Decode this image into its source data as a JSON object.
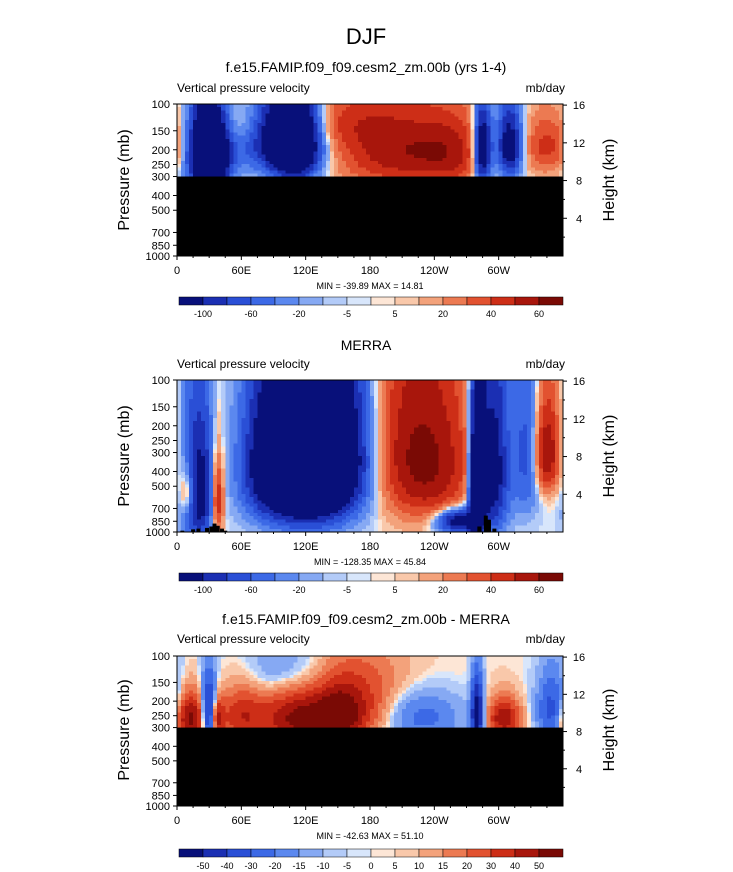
{
  "figure": {
    "title": "DJF"
  },
  "colors": {
    "blues": [
      "#08107a",
      "#1b2fb3",
      "#2a4fd6",
      "#3c69e6",
      "#5b88ef",
      "#86a9f3",
      "#b3cbf8",
      "#d8e6fb"
    ],
    "reds": [
      "#fde6d6",
      "#f9c8aa",
      "#f3a27b",
      "#ec7a52",
      "#e25230",
      "#cd2e17",
      "#a8160c",
      "#7a0a05"
    ],
    "neutral": "#dbe7fb",
    "mask": "#000000"
  },
  "chart_data": [
    {
      "type": "heatmap",
      "id": "model",
      "title": "f.e15.FAMIP.f09_f09.cesm2_zm.00b (yrs 1-4)",
      "left_label": "Vertical pressure velocity",
      "right_label": "mb/day",
      "ylabel": "Pressure (mb)",
      "y2label": "Height (km)",
      "xticks": [
        "0",
        "60E",
        "120E",
        "180",
        "120W",
        "60W"
      ],
      "xtick_lons": [
        0,
        60,
        120,
        180,
        240,
        300
      ],
      "yticks": [
        "100",
        "150",
        "200",
        "250",
        "300",
        "400",
        "500",
        "700",
        "850",
        "1000"
      ],
      "ytick_values": [
        100,
        150,
        200,
        250,
        300,
        400,
        500,
        700,
        850,
        1000
      ],
      "y2ticks": [
        "16",
        "12",
        "8",
        "4"
      ],
      "y2tick_values": [
        16,
        12,
        8,
        4
      ],
      "xlim": [
        0,
        360
      ],
      "ylim": [
        1000,
        100
      ],
      "mask_below_mb": 300,
      "minmax": "MIN = -39.89  MAX =  14.81",
      "min": -39.89,
      "max": 14.81,
      "colorbar_labels": [
        "-100",
        "-60",
        "-20",
        "-5",
        "5",
        "20",
        "40",
        "60"
      ],
      "colorbar_bins": 16,
      "field_scale": 0.45,
      "features": [
        {
          "lon": 30,
          "p": 210,
          "amp": -40,
          "wl": 12,
          "wp": 90
        },
        {
          "lon": 110,
          "p": 180,
          "amp": -30,
          "wl": 15,
          "wp": 80
        },
        {
          "lon": 90,
          "p": 160,
          "amp": -15,
          "wl": 25,
          "wp": 70
        },
        {
          "lon": 200,
          "p": 200,
          "amp": 12,
          "wl": 35,
          "wp": 90
        },
        {
          "lon": 255,
          "p": 210,
          "amp": 10,
          "wl": 25,
          "wp": 80
        },
        {
          "lon": 285,
          "p": 200,
          "amp": -25,
          "wl": 6,
          "wp": 80
        },
        {
          "lon": 310,
          "p": 190,
          "amp": -20,
          "wl": 8,
          "wp": 70
        },
        {
          "lon": 345,
          "p": 190,
          "amp": 8,
          "wl": 15,
          "wp": 60
        },
        {
          "lon": 60,
          "p": 130,
          "amp": 6,
          "wl": 20,
          "wp": 40
        },
        {
          "lon": 150,
          "p": 130,
          "amp": 5,
          "wl": 30,
          "wp": 40
        }
      ]
    },
    {
      "type": "heatmap",
      "id": "obs",
      "title": "MERRA",
      "left_label": "Vertical pressure velocity",
      "right_label": "mb/day",
      "ylabel": "Pressure (mb)",
      "y2label": "Height (km)",
      "xticks": [
        "0",
        "60E",
        "120E",
        "180",
        "120W",
        "60W"
      ],
      "xtick_lons": [
        0,
        60,
        120,
        180,
        240,
        300
      ],
      "yticks": [
        "100",
        "150",
        "200",
        "250",
        "300",
        "400",
        "500",
        "700",
        "850",
        "1000"
      ],
      "ytick_values": [
        100,
        150,
        200,
        250,
        300,
        400,
        500,
        700,
        850,
        1000
      ],
      "y2ticks": [
        "16",
        "12",
        "8",
        "4"
      ],
      "y2tick_values": [
        16,
        12,
        8,
        4
      ],
      "xlim": [
        0,
        360
      ],
      "ylim": [
        1000,
        100
      ],
      "mask_below_mb": null,
      "minmax": "MIN = -128.35  MAX =  45.84",
      "min": -128.35,
      "max": 45.84,
      "colorbar_labels": [
        "-100",
        "-60",
        "-20",
        "-5",
        "5",
        "20",
        "40",
        "60"
      ],
      "colorbar_bins": 16,
      "field_scale": 0.45,
      "features": [
        {
          "lon": 120,
          "p": 400,
          "amp": -95,
          "wl": 28,
          "wp": 320
        },
        {
          "lon": 150,
          "p": 300,
          "amp": -50,
          "wl": 25,
          "wp": 250
        },
        {
          "lon": 85,
          "p": 350,
          "amp": -40,
          "wl": 18,
          "wp": 250
        },
        {
          "lon": 20,
          "p": 550,
          "amp": -60,
          "wl": 10,
          "wp": 350
        },
        {
          "lon": 10,
          "p": 550,
          "amp": 35,
          "wl": 5,
          "wp": 150
        },
        {
          "lon": 38,
          "p": 600,
          "amp": 40,
          "wl": 4,
          "wp": 250
        },
        {
          "lon": 235,
          "p": 350,
          "amp": 45,
          "wl": 28,
          "wp": 300
        },
        {
          "lon": 200,
          "p": 250,
          "amp": 15,
          "wl": 22,
          "wp": 250
        },
        {
          "lon": 280,
          "p": 500,
          "amp": -100,
          "wl": 5,
          "wp": 350
        },
        {
          "lon": 295,
          "p": 400,
          "amp": -60,
          "wl": 10,
          "wp": 350
        },
        {
          "lon": 262,
          "p": 850,
          "amp": -60,
          "wl": 14,
          "wp": 110
        },
        {
          "lon": 345,
          "p": 300,
          "amp": 45,
          "wl": 8,
          "wp": 150
        },
        {
          "lon": 325,
          "p": 300,
          "amp": -25,
          "wl": 9,
          "wp": 300
        }
      ],
      "topography": [
        {
          "lon": 5,
          "p_top": 980
        },
        {
          "lon": 15,
          "p_top": 960
        },
        {
          "lon": 20,
          "p_top": 950
        },
        {
          "lon": 28,
          "p_top": 940
        },
        {
          "lon": 32,
          "p_top": 920
        },
        {
          "lon": 35,
          "p_top": 880
        },
        {
          "lon": 38,
          "p_top": 910
        },
        {
          "lon": 42,
          "p_top": 950
        },
        {
          "lon": 45,
          "p_top": 980
        },
        {
          "lon": 282,
          "p_top": 920
        },
        {
          "lon": 288,
          "p_top": 780
        },
        {
          "lon": 291,
          "p_top": 830
        },
        {
          "lon": 296,
          "p_top": 950
        }
      ]
    },
    {
      "type": "heatmap",
      "id": "diff",
      "title": "f.e15.FAMIP.f09_f09.cesm2_zm.00b - MERRA",
      "left_label": "Vertical pressure velocity",
      "right_label": "mb/day",
      "ylabel": "Pressure (mb)",
      "y2label": "Height (km)",
      "xticks": [
        "0",
        "60E",
        "120E",
        "180",
        "120W",
        "60W"
      ],
      "xtick_lons": [
        0,
        60,
        120,
        180,
        240,
        300
      ],
      "yticks": [
        "100",
        "150",
        "200",
        "250",
        "300",
        "400",
        "500",
        "700",
        "850",
        "1000"
      ],
      "ytick_values": [
        100,
        150,
        200,
        250,
        300,
        400,
        500,
        700,
        850,
        1000
      ],
      "y2ticks": [
        "16",
        "12",
        "8",
        "4"
      ],
      "y2tick_values": [
        16,
        12,
        8,
        4
      ],
      "xlim": [
        0,
        360
      ],
      "ylim": [
        1000,
        100
      ],
      "mask_below_mb": 300,
      "minmax": "MIN = -42.63  MAX =  51.10",
      "min": -42.63,
      "max": 51.1,
      "colorbar_labels": [
        "-50",
        "-40",
        "-30",
        "-20",
        "-15",
        "-10",
        "-5",
        "0",
        "5",
        "10",
        "15",
        "20",
        "30",
        "40",
        "50"
      ],
      "colorbar_bins": 16,
      "field_scale": 0.8,
      "features": [
        {
          "lon": 12,
          "p": 260,
          "amp": 35,
          "wl": 10,
          "wp": 60
        },
        {
          "lon": 30,
          "p": 240,
          "amp": -35,
          "wl": 5,
          "wp": 80
        },
        {
          "lon": 38,
          "p": 260,
          "amp": 25,
          "wl": 4,
          "wp": 50
        },
        {
          "lon": 60,
          "p": 250,
          "amp": 20,
          "wl": 15,
          "wp": 70
        },
        {
          "lon": 115,
          "p": 260,
          "amp": 35,
          "wl": 25,
          "wp": 70
        },
        {
          "lon": 150,
          "p": 250,
          "amp": 30,
          "wl": 15,
          "wp": 70
        },
        {
          "lon": 170,
          "p": 220,
          "amp": 15,
          "wl": 20,
          "wp": 80
        },
        {
          "lon": 230,
          "p": 250,
          "amp": -12,
          "wl": 25,
          "wp": 80
        },
        {
          "lon": 280,
          "p": 240,
          "amp": -40,
          "wl": 4,
          "wp": 80
        },
        {
          "lon": 305,
          "p": 260,
          "amp": 30,
          "wl": 10,
          "wp": 50
        },
        {
          "lon": 350,
          "p": 230,
          "amp": -20,
          "wl": 10,
          "wp": 80
        },
        {
          "lon": 200,
          "p": 140,
          "amp": 6,
          "wl": 40,
          "wp": 50
        },
        {
          "lon": 100,
          "p": 130,
          "amp": -8,
          "wl": 30,
          "wp": 40
        }
      ]
    }
  ]
}
